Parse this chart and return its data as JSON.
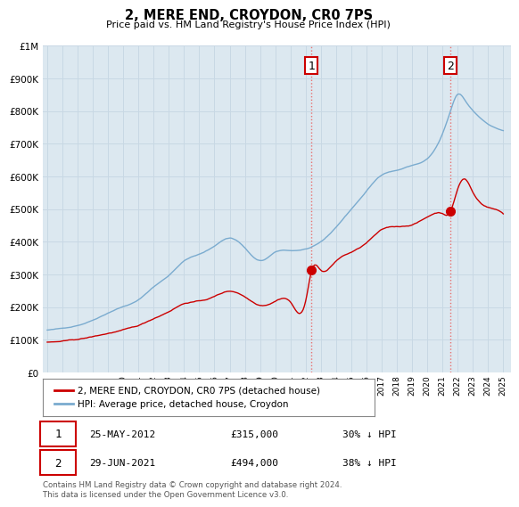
{
  "title": "2, MERE END, CROYDON, CR0 7PS",
  "subtitle": "Price paid vs. HM Land Registry's House Price Index (HPI)",
  "footer": "Contains HM Land Registry data © Crown copyright and database right 2024.\nThis data is licensed under the Open Government Licence v3.0.",
  "legend_label_red": "2, MERE END, CROYDON, CR0 7PS (detached house)",
  "legend_label_blue": "HPI: Average price, detached house, Croydon",
  "annotation1_date": "25-MAY-2012",
  "annotation1_price": "£315,000",
  "annotation1_hpi": "30% ↓ HPI",
  "annotation2_date": "29-JUN-2021",
  "annotation2_price": "£494,000",
  "annotation2_hpi": "38% ↓ HPI",
  "red_color": "#cc0000",
  "blue_color": "#7aabcf",
  "vline_color": "#e87070",
  "chart_bg": "#dce8f0",
  "background_color": "#ffffff",
  "grid_color": "#c8d8e4",
  "ylim": [
    0,
    1000000
  ],
  "xlim_start": 1994.7,
  "xlim_end": 2025.5,
  "sale1_x": 2012.38,
  "sale1_y": 315000,
  "sale2_x": 2021.5,
  "sale2_y": 494000
}
